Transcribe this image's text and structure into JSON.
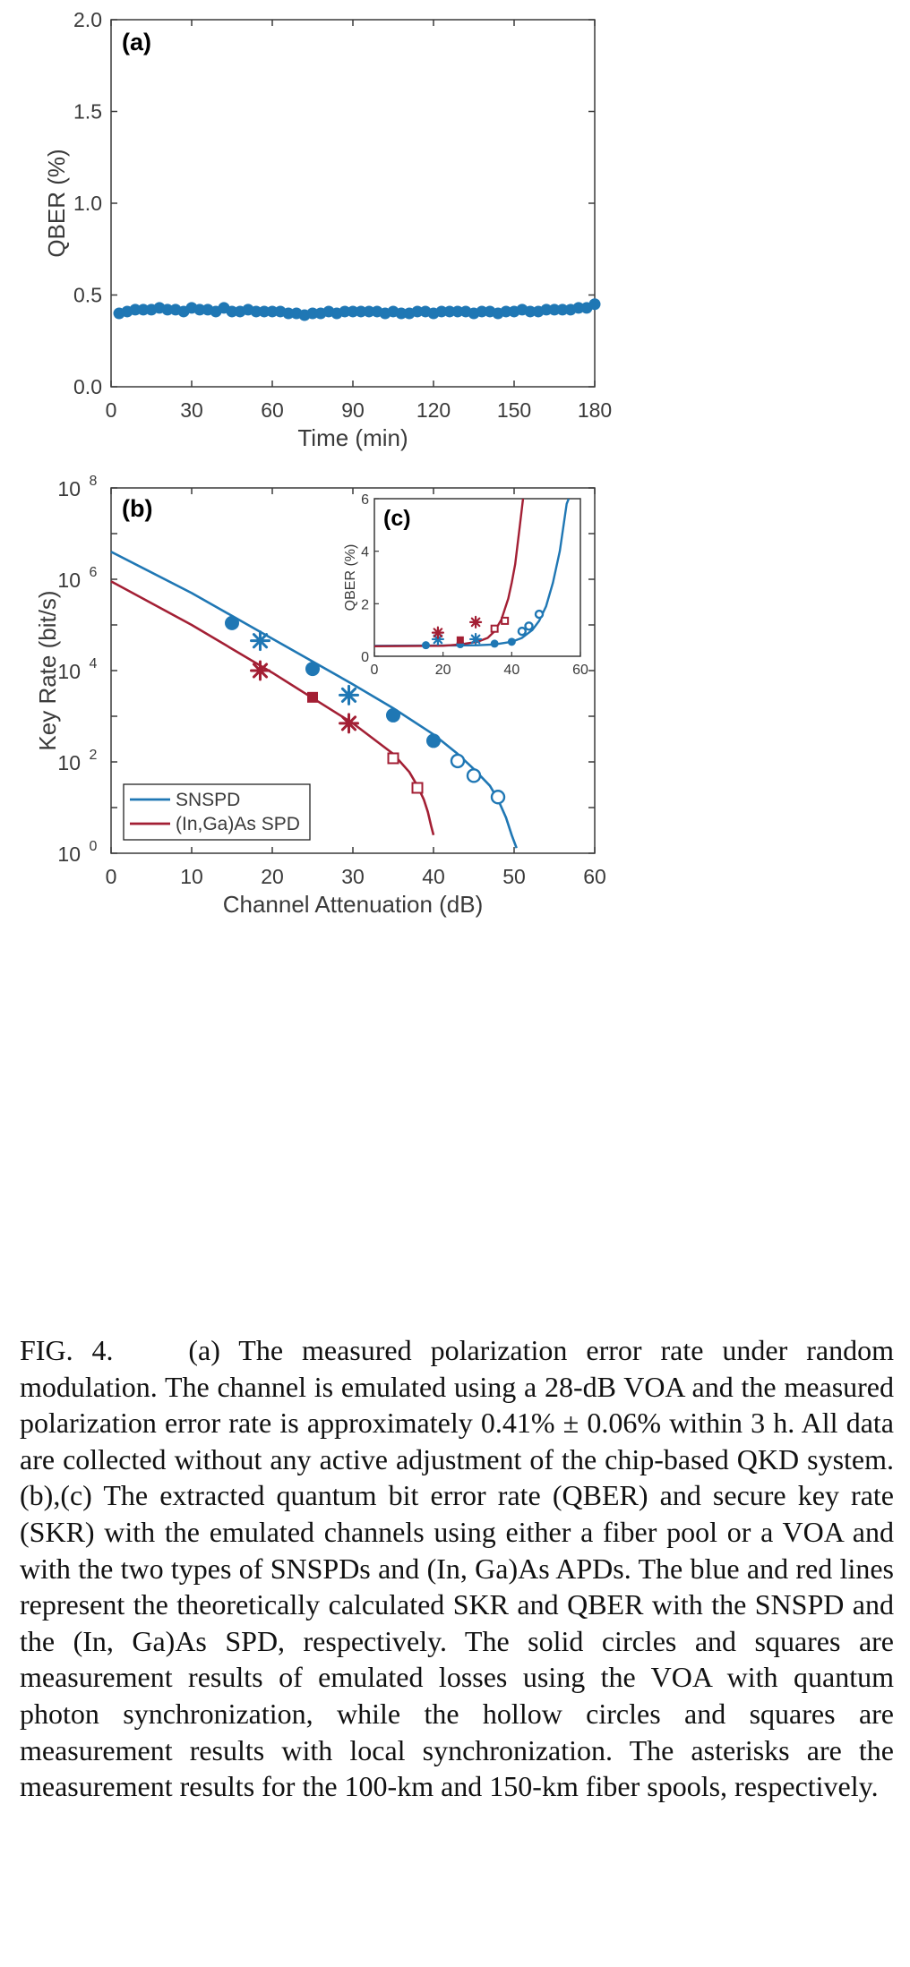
{
  "colors": {
    "blue": "#1f77b4",
    "red": "#a31f34",
    "axis": "#3a3a3a"
  },
  "chart_data": [
    {
      "panel": "(a)",
      "type": "scatter",
      "xlabel": "Time (min)",
      "ylabel": "QBER (%)",
      "xlim": [
        0,
        180
      ],
      "ylim": [
        0,
        2
      ],
      "xticks": [
        "0",
        "30",
        "60",
        "90",
        "120",
        "150",
        "180"
      ],
      "yticks": [
        "0.0",
        "0.5",
        "1.0",
        "1.5",
        "2.0"
      ],
      "grid": false,
      "series": [
        {
          "x": [
            3,
            6,
            9,
            12,
            15,
            18,
            21,
            24,
            27,
            30,
            33,
            36,
            39,
            42,
            45,
            48,
            51,
            54,
            57,
            60,
            63,
            66,
            69,
            72,
            75,
            78,
            81,
            84,
            87,
            90,
            93,
            96,
            99,
            102,
            105,
            108,
            111,
            114,
            117,
            120,
            123,
            126,
            129,
            132,
            135,
            138,
            141,
            144,
            147,
            150,
            153,
            156,
            159,
            162,
            165,
            168,
            171,
            174,
            177,
            180
          ],
          "y": [
            0.4,
            0.41,
            0.42,
            0.42,
            0.42,
            0.43,
            0.42,
            0.42,
            0.41,
            0.43,
            0.42,
            0.42,
            0.41,
            0.43,
            0.41,
            0.41,
            0.42,
            0.41,
            0.41,
            0.41,
            0.41,
            0.4,
            0.4,
            0.39,
            0.4,
            0.4,
            0.41,
            0.4,
            0.41,
            0.41,
            0.41,
            0.41,
            0.41,
            0.4,
            0.41,
            0.4,
            0.4,
            0.41,
            0.41,
            0.4,
            0.41,
            0.41,
            0.41,
            0.41,
            0.4,
            0.41,
            0.41,
            0.4,
            0.41,
            0.41,
            0.42,
            0.41,
            0.41,
            0.42,
            0.42,
            0.42,
            0.42,
            0.43,
            0.43,
            0.45
          ]
        }
      ]
    },
    {
      "panel": "(b)",
      "type": "line",
      "xlabel": "Channel Attenuation (dB)",
      "ylabel": "Key Rate (bit/s)",
      "xlim": [
        0,
        60
      ],
      "ylim": [
        1,
        100000000
      ],
      "yscale": "log",
      "xticks": [
        "0",
        "10",
        "20",
        "30",
        "40",
        "50",
        "60"
      ],
      "yticks_exp": [
        "0",
        "2",
        "4",
        "6",
        "8"
      ],
      "legend": "bottom-left",
      "legend_entries": [
        "SNSPD",
        "(In,Ga)As SPD"
      ],
      "series": [
        {
          "name": "SNSPD",
          "color": "blue",
          "theory_x": [
            0,
            10,
            20,
            30,
            35,
            40,
            43,
            45,
            47,
            48,
            49,
            49.7,
            50.3
          ],
          "theory_y": [
            4000000,
            500000,
            50000,
            5000,
            1500,
            400,
            150,
            70,
            30,
            15,
            6,
            2.5,
            1.3
          ],
          "solid": {
            "x": [
              15,
              25,
              35,
              40
            ],
            "y": [
              110000,
              10900,
              1050,
              290
            ]
          },
          "hollow": {
            "x": [
              43,
              45,
              48
            ],
            "y": [
              105,
              50,
              17
            ]
          },
          "asterisk": {
            "x": [
              18.5,
              29.5
            ],
            "y": [
              45000,
              2900
            ]
          }
        },
        {
          "name": "(In,Ga)As SPD",
          "color": "red",
          "theory_x": [
            0,
            10,
            20,
            25,
            30,
            35,
            37,
            38,
            38.8,
            39.3,
            39.7,
            40
          ],
          "theory_y": [
            900000,
            100000,
            9000,
            2500,
            700,
            150,
            60,
            30,
            15,
            8,
            4,
            2.5
          ],
          "solid": {
            "x": [
              25
            ],
            "y": [
              2600
            ]
          },
          "hollow": {
            "x": [
              35,
              38
            ],
            "y": [
              120,
              27
            ]
          },
          "asterisk": {
            "x": [
              18.5,
              29.5
            ],
            "y": [
              10000,
              700
            ]
          }
        }
      ]
    },
    {
      "panel": "(c)",
      "type": "line",
      "ylabel": "QBER (%)",
      "xlim": [
        0,
        60
      ],
      "ylim": [
        0,
        6
      ],
      "xticks": [
        "0",
        "20",
        "40",
        "60"
      ],
      "yticks": [
        "0",
        "2",
        "4",
        "6"
      ],
      "series": [
        {
          "color": "blue",
          "theory_x": [
            0,
            20,
            30,
            35,
            40,
            43,
            46,
            48,
            50,
            52,
            54,
            55,
            56,
            56.6
          ],
          "theory_y": [
            0.4,
            0.41,
            0.42,
            0.45,
            0.55,
            0.7,
            1.0,
            1.35,
            1.9,
            2.8,
            4.0,
            4.9,
            5.8,
            6.0
          ],
          "solid": {
            "x": [
              15,
              25,
              35,
              40
            ],
            "y": [
              0.42,
              0.46,
              0.48,
              0.55
            ]
          },
          "hollow": {
            "x": [
              43,
              45,
              48
            ],
            "y": [
              0.95,
              1.15,
              1.6
            ]
          },
          "asterisk": {
            "x": [
              18.5,
              29.5
            ],
            "y": [
              0.65,
              0.65
            ]
          }
        },
        {
          "color": "red",
          "theory_x": [
            0,
            20,
            25,
            30,
            33,
            35,
            37,
            39,
            40,
            41,
            42.3,
            43.3
          ],
          "theory_y": [
            0.38,
            0.4,
            0.45,
            0.55,
            0.7,
            0.95,
            1.4,
            2.2,
            2.8,
            3.5,
            4.9,
            6.0
          ],
          "solid": {
            "x": [
              25
            ],
            "y": [
              0.62
            ]
          },
          "hollow": {
            "x": [
              35,
              38
            ],
            "y": [
              1.05,
              1.35
            ]
          },
          "asterisk": {
            "x": [
              18.5,
              29.5
            ],
            "y": [
              0.9,
              1.3
            ]
          }
        }
      ]
    }
  ],
  "caption": {
    "lead": "FIG. 4.",
    "text": "(a) The measured polarization error rate under random modulation. The channel is emulated using a 28-dB VOA and the measured polarization error rate is approximately 0.41% ± 0.06% within 3 h. All data are collected without any active adjustment of the chip-based QKD system. (b),(c) The extracted quantum bit error rate (QBER) and secure key rate (SKR) with the emulated channels using either a fiber pool or a VOA and with the two types of SNSPDs and (In, Ga)As APDs. The blue and red lines represent the theoretically calculated SKR and QBER with the SNSPD and the (In, Ga)As SPD, respectively. The solid circles and squares are measurement results of emulated losses using the VOA with quantum photon synchronization, while the hollow circles and squares are measurement results with local synchronization. The asterisks are the measurement results for the 100-km and 150-km fiber spools, respectively."
  }
}
